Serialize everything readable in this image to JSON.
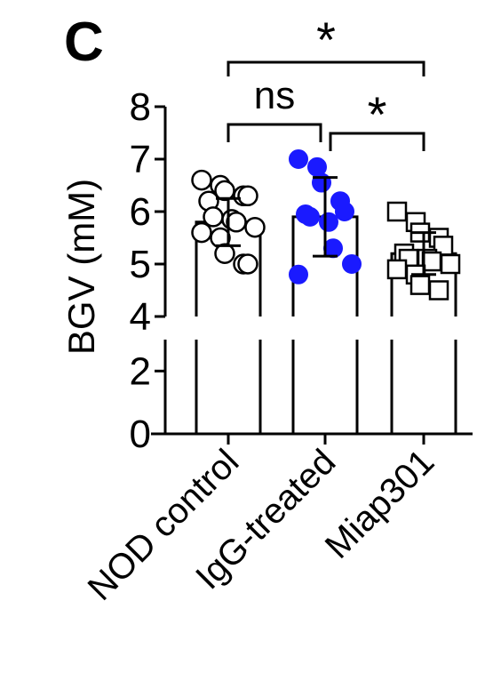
{
  "panel_label": "C",
  "chart_data": {
    "type": "bar",
    "ylabel": "BGV (mM)",
    "xlabel": "",
    "title": "",
    "categories": [
      "NOD control",
      "IgG-treated",
      "Miap301"
    ],
    "values": [
      5.8,
      5.9,
      5.2
    ],
    "error": [
      0.45,
      0.75,
      0.4
    ],
    "ylim": [
      0,
      8
    ],
    "y_axis_break": [
      3,
      4
    ],
    "yticks_lower": [
      "0",
      "2"
    ],
    "yticks_upper": [
      "4",
      "5",
      "6",
      "7",
      "8"
    ],
    "yticks_lower_values": [
      0,
      2
    ],
    "yticks_upper_values": [
      4,
      5,
      6,
      7,
      8
    ],
    "bar_color": "#ffffff",
    "points": [
      {
        "group": "NOD control",
        "marker": "circle-open",
        "color": "#000000",
        "values": [
          6.6,
          6.5,
          6.4,
          6.3,
          6.3,
          6.2,
          5.9,
          5.85,
          5.8,
          5.7,
          5.6,
          5.5,
          5.2,
          5.0,
          5.0
        ]
      },
      {
        "group": "IgG-treated",
        "marker": "circle-filled",
        "color": "#1a1aff",
        "values": [
          7.0,
          6.85,
          6.55,
          6.2,
          6.0,
          5.95,
          5.9,
          5.8,
          5.3,
          5.0,
          4.8
        ]
      },
      {
        "group": "Miap301",
        "marker": "square-open",
        "color": "#000000",
        "values": [
          6.0,
          5.8,
          5.6,
          5.5,
          5.35,
          5.2,
          5.1,
          5.1,
          5.05,
          5.0,
          4.9,
          4.8,
          4.6,
          4.5
        ]
      }
    ],
    "comparisons": [
      {
        "from": "NOD control",
        "to": "IgG-treated",
        "label": "ns"
      },
      {
        "from": "IgG-treated",
        "to": "Miap301",
        "label": "*"
      },
      {
        "from": "NOD control",
        "to": "Miap301",
        "label": "*"
      }
    ]
  }
}
